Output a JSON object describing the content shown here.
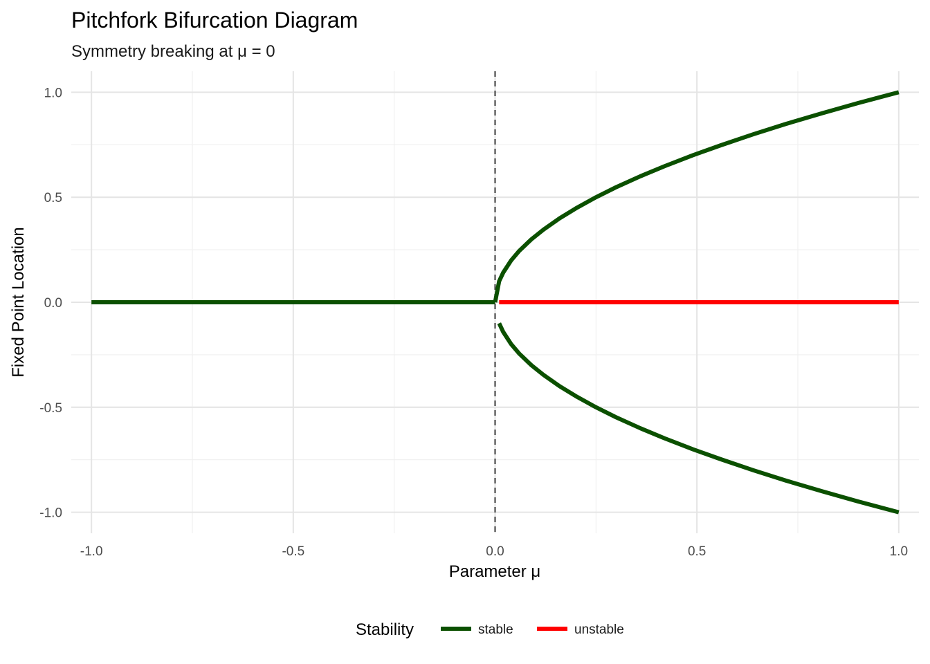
{
  "chart_data": {
    "type": "line",
    "title": "Pitchfork Bifurcation Diagram",
    "subtitle": "Symmetry breaking at μ = 0",
    "xlabel": "Parameter μ",
    "ylabel": "Fixed Point Location",
    "xlim": [
      -1.05,
      1.05
    ],
    "ylim": [
      -1.1,
      1.1
    ],
    "x_ticks": [
      -1.0,
      -0.5,
      0.0,
      0.5,
      1.0
    ],
    "y_ticks": [
      -1.0,
      -0.5,
      0.0,
      0.5,
      1.0
    ],
    "x_tick_labels": [
      "-1.0",
      "-0.5",
      "0.0",
      "0.5",
      "1.0"
    ],
    "y_tick_labels": [
      "-1.0",
      "-0.5",
      "0.0",
      "0.5",
      "1.0"
    ],
    "grid": true,
    "reference_line": {
      "x": 0.0,
      "style": "dashed",
      "color": "#4d4d4d"
    },
    "legend": {
      "title": "Stability",
      "position": "bottom",
      "entries": [
        {
          "label": "stable",
          "color": "#0b5000"
        },
        {
          "label": "unstable",
          "color": "#ff0000"
        }
      ]
    },
    "series": [
      {
        "stability": "stable",
        "color": "#0b5000",
        "x": [
          -1.0,
          -0.5,
          0.0
        ],
        "y": [
          0.0,
          0.0,
          0.0
        ]
      },
      {
        "stability": "stable",
        "color": "#0b5000",
        "x": [
          0.0,
          0.01,
          0.02,
          0.04,
          0.06,
          0.09,
          0.12,
          0.16,
          0.2,
          0.25,
          0.3,
          0.36,
          0.42,
          0.49,
          0.56,
          0.64,
          0.72,
          0.81,
          0.9,
          1.0
        ],
        "y": [
          0.0,
          0.1,
          0.141,
          0.2,
          0.245,
          0.3,
          0.346,
          0.4,
          0.447,
          0.5,
          0.548,
          0.6,
          0.648,
          0.7,
          0.748,
          0.8,
          0.849,
          0.9,
          0.949,
          1.0
        ]
      },
      {
        "stability": "stable",
        "color": "#0b5000",
        "x": [
          0.01,
          0.02,
          0.04,
          0.06,
          0.09,
          0.12,
          0.16,
          0.2,
          0.25,
          0.3,
          0.36,
          0.42,
          0.49,
          0.56,
          0.64,
          0.72,
          0.81,
          0.9,
          1.0
        ],
        "y": [
          -0.1,
          -0.141,
          -0.2,
          -0.245,
          -0.3,
          -0.346,
          -0.4,
          -0.447,
          -0.5,
          -0.548,
          -0.6,
          -0.648,
          -0.7,
          -0.748,
          -0.8,
          -0.849,
          -0.9,
          -0.949,
          -1.0
        ]
      },
      {
        "stability": "unstable",
        "color": "#ff0000",
        "x": [
          0.01,
          1.0
        ],
        "y": [
          0.0,
          0.0
        ]
      }
    ]
  }
}
